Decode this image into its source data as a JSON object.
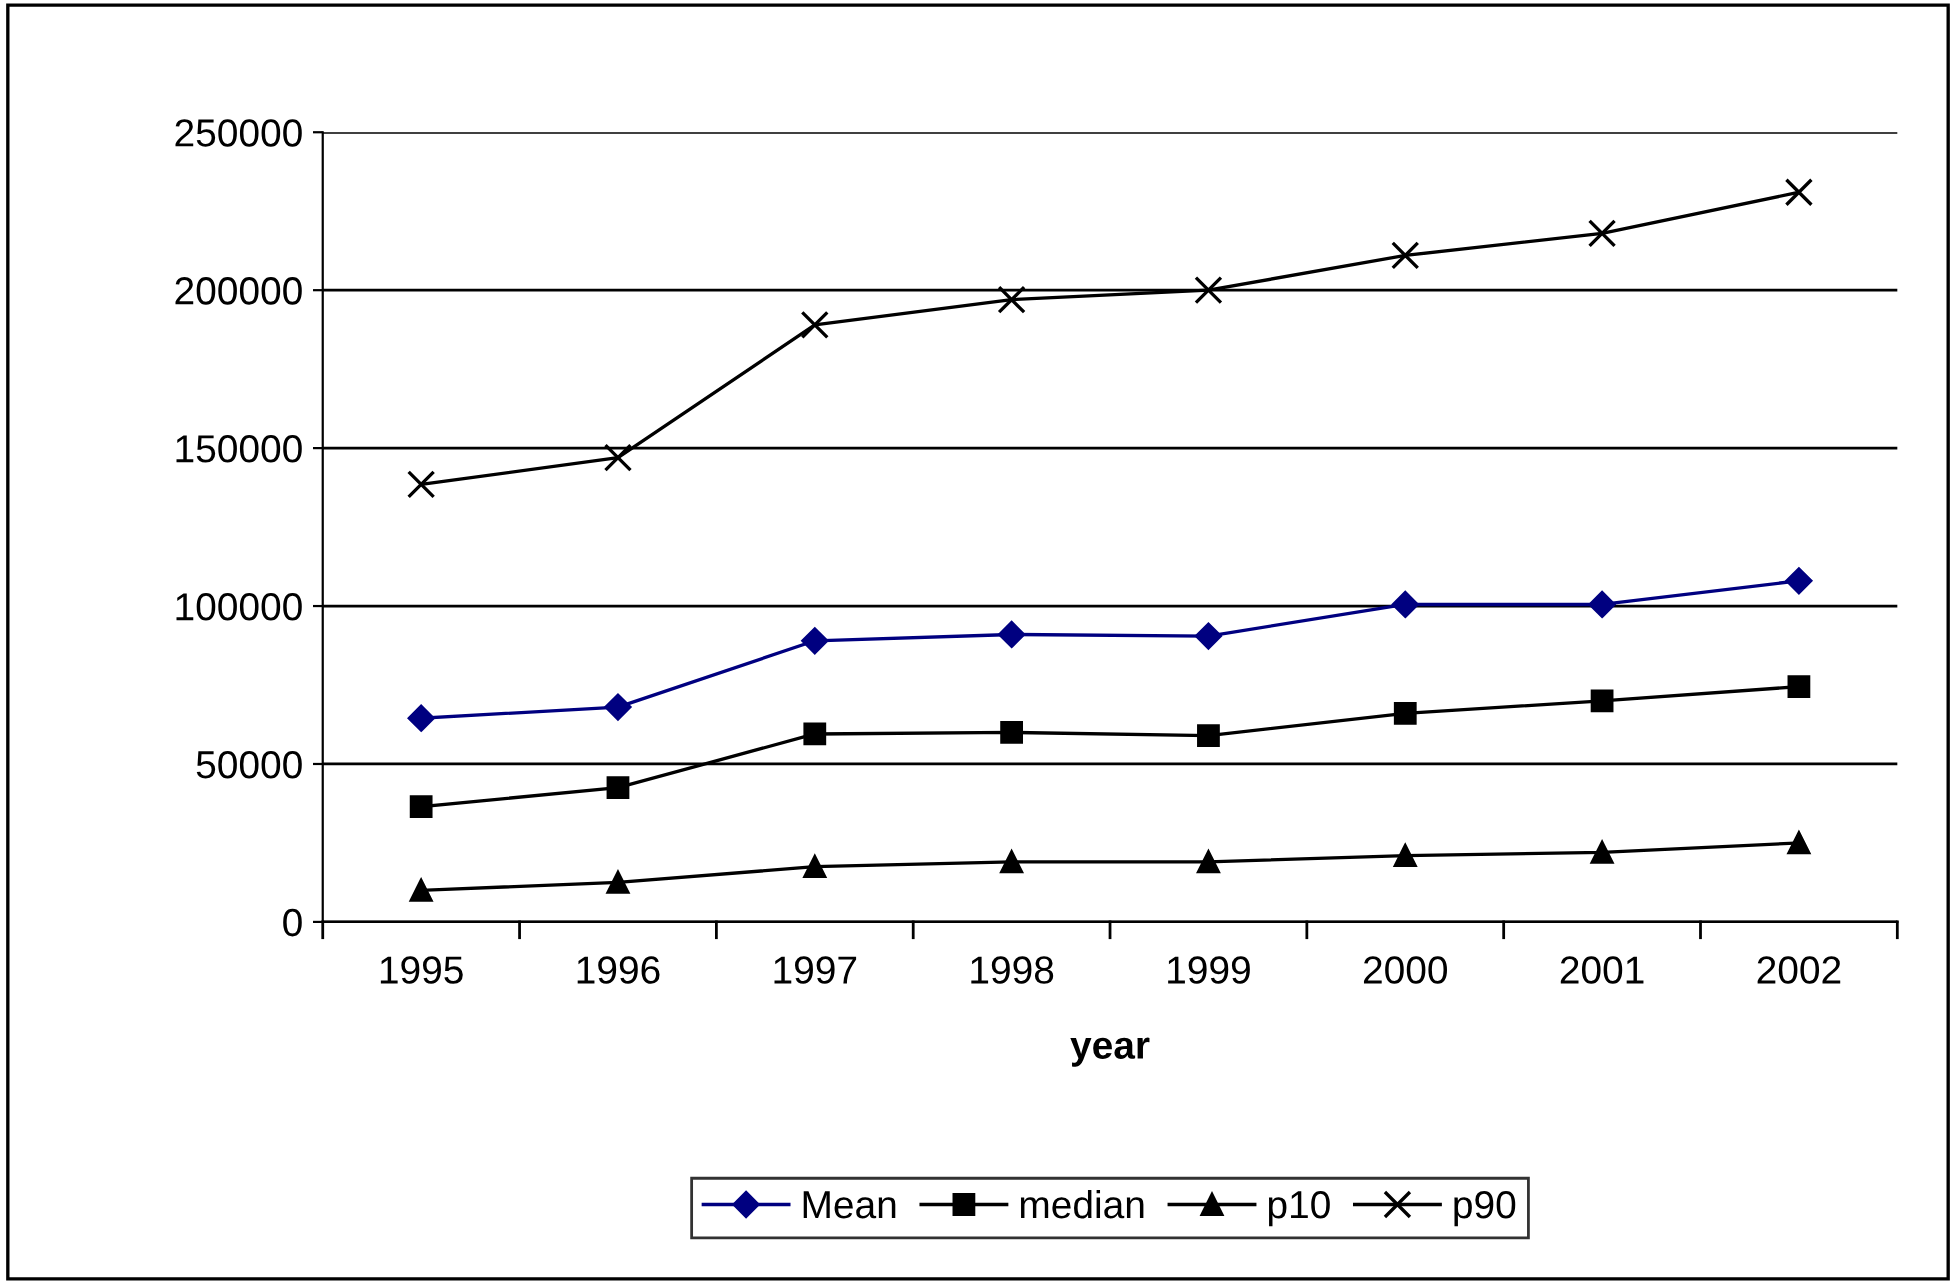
{
  "chart_data": {
    "type": "line",
    "xlabel": "year",
    "categories": [
      "1995",
      "1996",
      "1997",
      "1998",
      "1999",
      "2000",
      "2001",
      "2002"
    ],
    "series": [
      {
        "name": "Mean",
        "color": "#000080",
        "marker": "diamond",
        "values": [
          64500,
          68000,
          89000,
          91000,
          90500,
          100500,
          100500,
          108000
        ]
      },
      {
        "name": "median",
        "color": "#000000",
        "marker": "square",
        "values": [
          36500,
          42500,
          59500,
          60000,
          59000,
          66000,
          70000,
          74500
        ]
      },
      {
        "name": "p10",
        "color": "#000000",
        "marker": "triangle",
        "values": [
          10000,
          12500,
          17500,
          19000,
          19000,
          21000,
          22000,
          25000
        ]
      },
      {
        "name": "p90",
        "color": "#000000",
        "marker": "cross",
        "values": [
          138500,
          147000,
          189000,
          197000,
          200000,
          211000,
          218000,
          231000
        ]
      }
    ],
    "ylim": [
      0,
      250000
    ],
    "yticks": [
      0,
      50000,
      100000,
      150000,
      200000,
      250000
    ],
    "grid": "y",
    "legend": "bottom",
    "line_style": "solid"
  }
}
